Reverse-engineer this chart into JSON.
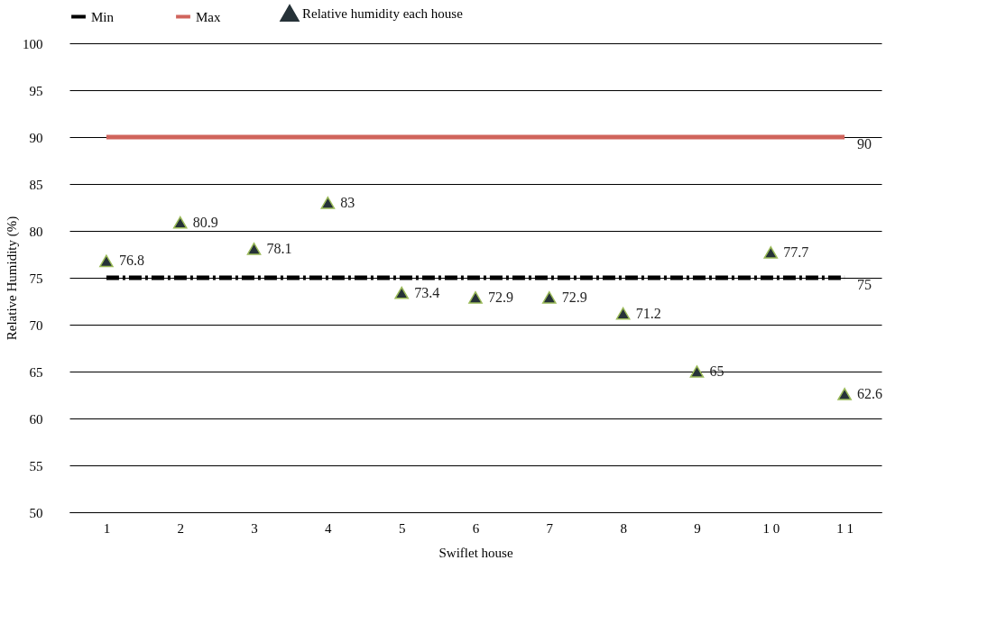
{
  "chart_data": {
    "type": "line",
    "xlabel": "Swiflet house",
    "ylabel": "Relative Humidity (%)",
    "categories": [
      "1",
      "2",
      "3",
      "4",
      "5",
      "6",
      "7",
      "8",
      "9",
      "1 0",
      "1 1"
    ],
    "series": [
      {
        "name": "Min",
        "color": "#000000",
        "line_style": "dashed",
        "values": [
          75,
          75,
          75,
          75,
          75,
          75,
          75,
          75,
          75,
          75,
          75
        ],
        "value_labels": [
          null,
          null,
          null,
          null,
          null,
          null,
          null,
          null,
          null,
          null,
          "75"
        ]
      },
      {
        "name": "Max",
        "color": "#d0645c",
        "line_style": "solid",
        "values": [
          90,
          90,
          90,
          90,
          90,
          90,
          90,
          90,
          90,
          90,
          90
        ],
        "value_labels": [
          null,
          null,
          null,
          null,
          null,
          null,
          null,
          null,
          null,
          null,
          "90"
        ]
      },
      {
        "name": "Relative humidity each house",
        "type": "scatter",
        "marker": "triangle",
        "color": "#263238",
        "data_labels": true,
        "values": [
          76.8,
          80.9,
          78.1,
          83,
          73.4,
          72.9,
          72.9,
          71.2,
          65,
          77.7,
          62.6
        ]
      }
    ],
    "ylim": [
      50,
      100
    ],
    "yticks": [
      50,
      55,
      60,
      65,
      70,
      75,
      80,
      85,
      90,
      95,
      100
    ],
    "grid": "y",
    "legend": "top"
  }
}
